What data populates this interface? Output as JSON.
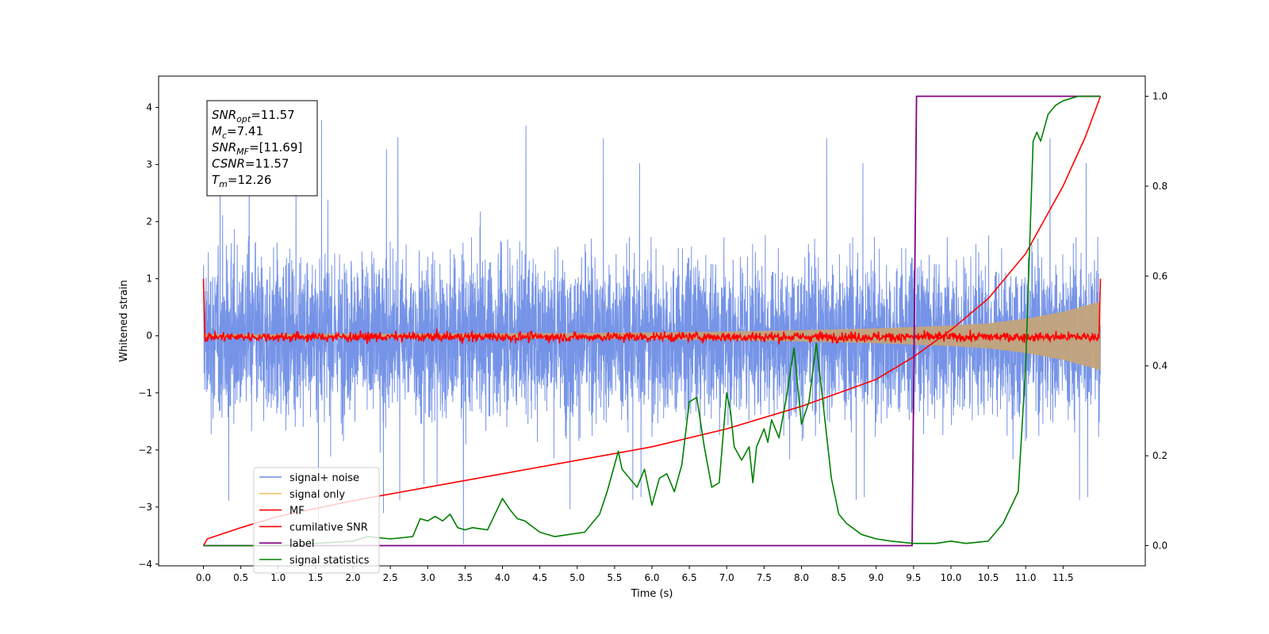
{
  "chart_data": {
    "type": "line",
    "xlabel": "Time (s)",
    "ylabel": "Whitened strain",
    "xlim": [
      -0.6,
      12.6
    ],
    "ylim": [
      -4.03,
      4.55
    ],
    "y2lim": [
      -0.045,
      1.045
    ],
    "x_ticks": [
      "0.0",
      "0.5",
      "1.0",
      "1.5",
      "2.0",
      "2.5",
      "3.0",
      "3.5",
      "4.0",
      "4.5",
      "5.0",
      "5.5",
      "6.0",
      "6.5",
      "7.0",
      "7.5",
      "8.0",
      "8.5",
      "9.0",
      "9.5",
      "10.0",
      "10.5",
      "11.0",
      "11.5"
    ],
    "y_ticks": [
      "4",
      "3",
      "2",
      "1",
      "0",
      "−1",
      "−2",
      "−3",
      "−4"
    ],
    "y2_ticks": [
      "1.0",
      "0.8",
      "0.6",
      "0.4",
      "0.2",
      "0.0"
    ],
    "stats_box": [
      {
        "sym": "SNR",
        "sub": "opt",
        "value": "=11.57"
      },
      {
        "sym": "M",
        "sub": "c",
        "value": "=7.41"
      },
      {
        "sym": "SNR",
        "sub": "MF",
        "value": "=[11.69]"
      },
      {
        "sym": "CSNR",
        "sub": "",
        "value": "=11.57"
      },
      {
        "sym": "T",
        "sub": "m",
        "value": "=12.26"
      }
    ],
    "legend": [
      {
        "label": "signal+ noise",
        "color": "#6f8ee6"
      },
      {
        "label": "signal only",
        "color": "#f5c26b"
      },
      {
        "label": "MF",
        "color": "#ff0000"
      },
      {
        "label": "cumilative SNR",
        "color": "#ff0000"
      },
      {
        "label": "label",
        "color": "#800080"
      },
      {
        "label": "signal statistics",
        "color": "#008000"
      }
    ],
    "series": [
      {
        "name": "signal+ noise",
        "axis": "left",
        "color": "#6f8ee6",
        "t_range": [
          0.0,
          12.0
        ],
        "envelope": {
          "typical_peak": 2.3,
          "max": 4.17,
          "min": -3.65
        }
      },
      {
        "name": "signal only",
        "axis": "left",
        "color": "#f5c26b",
        "x": [
          0,
          1,
          2,
          3,
          4,
          5,
          6,
          7,
          8,
          9,
          10,
          10.5,
          11,
          11.5,
          12
        ],
        "amplitude": [
          0.03,
          0.03,
          0.035,
          0.04,
          0.045,
          0.05,
          0.06,
          0.075,
          0.1,
          0.13,
          0.18,
          0.22,
          0.3,
          0.42,
          0.6
        ]
      },
      {
        "name": "MF",
        "axis": "left",
        "color": "#ff0000",
        "t_range": [
          0.0,
          12.0
        ],
        "points": [
          [
            0.0,
            1.0
          ],
          [
            0.02,
            -0.05
          ],
          [
            11.98,
            -0.05
          ],
          [
            12.0,
            1.0
          ]
        ],
        "fluctuation": 0.12
      },
      {
        "name": "cumilative SNR",
        "axis": "right",
        "color": "#ff0000",
        "x": [
          0,
          0.05,
          0.5,
          1,
          2,
          3,
          4,
          5,
          6,
          7,
          8,
          9,
          9.5,
          10,
          10.5,
          11,
          11.5,
          11.8,
          12
        ],
        "y": [
          0.0,
          0.015,
          0.04,
          0.065,
          0.1,
          0.13,
          0.16,
          0.19,
          0.22,
          0.26,
          0.31,
          0.37,
          0.42,
          0.48,
          0.55,
          0.65,
          0.8,
          0.91,
          1.0
        ]
      },
      {
        "name": "label",
        "axis": "right",
        "color": "#800080",
        "x": [
          0,
          9.48,
          9.54,
          12.0
        ],
        "y": [
          0,
          0,
          1,
          1
        ]
      },
      {
        "name": "signal statistics",
        "axis": "right",
        "color": "#008000",
        "x": [
          0,
          0.5,
          1,
          1.5,
          2,
          2.2,
          2.5,
          2.8,
          2.9,
          3.0,
          3.1,
          3.2,
          3.3,
          3.4,
          3.5,
          3.6,
          3.8,
          3.9,
          4.0,
          4.1,
          4.2,
          4.3,
          4.5,
          4.7,
          4.9,
          5.1,
          5.3,
          5.4,
          5.5,
          5.55,
          5.6,
          5.7,
          5.8,
          5.9,
          6.0,
          6.1,
          6.2,
          6.3,
          6.4,
          6.5,
          6.6,
          6.7,
          6.8,
          6.9,
          7.0,
          7.05,
          7.1,
          7.2,
          7.3,
          7.35,
          7.4,
          7.5,
          7.55,
          7.6,
          7.7,
          7.8,
          7.9,
          8.0,
          8.1,
          8.2,
          8.3,
          8.4,
          8.5,
          8.6,
          8.8,
          9.0,
          9.2,
          9.5,
          9.8,
          10.0,
          10.2,
          10.5,
          10.7,
          10.9,
          11.0,
          11.05,
          11.1,
          11.15,
          11.2,
          11.3,
          11.4,
          11.5,
          11.7,
          11.8,
          12.0
        ],
        "y": [
          0.0,
          0.0,
          0.0,
          0.005,
          0.01,
          0.02,
          0.015,
          0.02,
          0.06,
          0.055,
          0.065,
          0.055,
          0.07,
          0.04,
          0.035,
          0.04,
          0.035,
          0.07,
          0.105,
          0.08,
          0.06,
          0.055,
          0.03,
          0.02,
          0.025,
          0.03,
          0.07,
          0.12,
          0.18,
          0.21,
          0.17,
          0.15,
          0.13,
          0.17,
          0.09,
          0.15,
          0.16,
          0.12,
          0.18,
          0.32,
          0.33,
          0.22,
          0.13,
          0.14,
          0.34,
          0.3,
          0.22,
          0.19,
          0.22,
          0.14,
          0.22,
          0.26,
          0.23,
          0.28,
          0.24,
          0.33,
          0.44,
          0.27,
          0.32,
          0.45,
          0.3,
          0.15,
          0.07,
          0.05,
          0.025,
          0.015,
          0.01,
          0.005,
          0.005,
          0.01,
          0.005,
          0.01,
          0.05,
          0.12,
          0.4,
          0.65,
          0.9,
          0.92,
          0.9,
          0.96,
          0.98,
          0.99,
          1.0,
          1.0,
          1.0
        ]
      }
    ]
  }
}
